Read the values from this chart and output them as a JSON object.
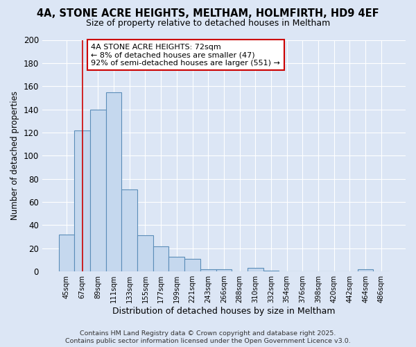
{
  "title1": "4A, STONE ACRE HEIGHTS, MELTHAM, HOLMFIRTH, HD9 4EF",
  "title2": "Size of property relative to detached houses in Meltham",
  "xlabel": "Distribution of detached houses by size in Meltham",
  "ylabel": "Number of detached properties",
  "bar_labels": [
    "45sqm",
    "67sqm",
    "89sqm",
    "111sqm",
    "133sqm",
    "155sqm",
    "177sqm",
    "199sqm",
    "221sqm",
    "243sqm",
    "266sqm",
    "288sqm",
    "310sqm",
    "332sqm",
    "354sqm",
    "376sqm",
    "398sqm",
    "420sqm",
    "442sqm",
    "464sqm",
    "486sqm"
  ],
  "bar_values": [
    32,
    122,
    140,
    155,
    71,
    31,
    22,
    13,
    11,
    2,
    2,
    0,
    3,
    1,
    0,
    0,
    0,
    0,
    0,
    2,
    0
  ],
  "bar_color": "#c5d8ee",
  "bar_edge_color": "#5b8db8",
  "bg_color": "#dce6f5",
  "grid_color": "#ffffff",
  "redline_x": 1,
  "annotation_text": "4A STONE ACRE HEIGHTS: 72sqm\n← 8% of detached houses are smaller (47)\n92% of semi-detached houses are larger (551) →",
  "annotation_box_color": "#ffffff",
  "annotation_edge_color": "#cc0000",
  "footer1": "Contains HM Land Registry data © Crown copyright and database right 2025.",
  "footer2": "Contains public sector information licensed under the Open Government Licence v3.0.",
  "ylim": [
    0,
    200
  ],
  "yticks": [
    0,
    20,
    40,
    60,
    80,
    100,
    120,
    140,
    160,
    180,
    200
  ]
}
